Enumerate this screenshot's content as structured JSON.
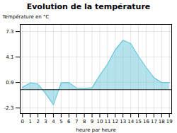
{
  "chart_data": {
    "type": "area",
    "title": "Evolution de la température",
    "xlabel": "heure par heure",
    "ylabel": "Température en °C",
    "x": [
      0,
      1,
      2,
      3,
      4,
      5,
      6,
      7,
      8,
      9,
      10,
      11,
      12,
      13,
      14,
      15,
      16,
      17,
      18,
      19
    ],
    "values": [
      0.3,
      0.85,
      0.7,
      -0.5,
      -1.9,
      0.85,
      0.9,
      0.2,
      0.15,
      0.25,
      1.8,
      3.2,
      5.0,
      6.2,
      5.8,
      4.2,
      2.8,
      1.5,
      0.9,
      0.9
    ],
    "color": "#6cc8dc",
    "xlim": [
      -0.3,
      19.3
    ],
    "xticks": [
      0,
      1,
      2,
      3,
      4,
      5,
      6,
      7,
      8,
      9,
      10,
      11,
      12,
      13,
      14,
      15,
      16,
      17,
      18,
      19
    ],
    "ylim": [
      -3.0,
      8.2
    ],
    "yticks": [
      -2.3,
      0.9,
      4.1,
      7.3
    ],
    "grid": true
  }
}
